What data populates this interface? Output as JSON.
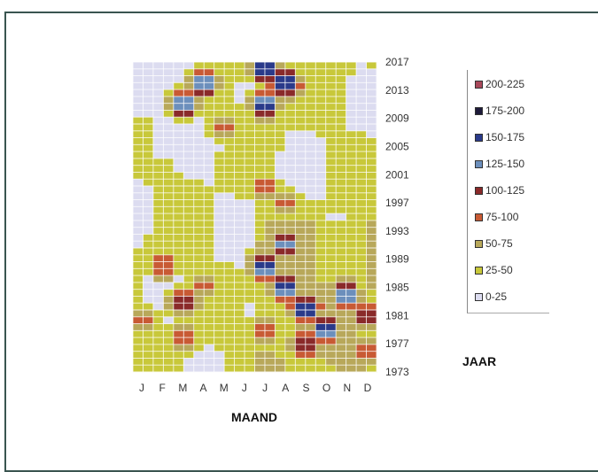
{
  "chart_data": {
    "type": "heatmap",
    "xlabel": "MAAND",
    "ylabel": "JAAR",
    "x_ticks": [
      "J",
      "F",
      "M",
      "A",
      "M",
      "J",
      "J",
      "A",
      "S",
      "O",
      "N",
      "D"
    ],
    "y_ticks": [
      "2017",
      "2013",
      "2009",
      "2005",
      "2001",
      "1997",
      "1993",
      "1989",
      "1985",
      "1981",
      "1977",
      "1973"
    ],
    "yrange": [
      1973,
      2017
    ],
    "grid": true,
    "legend_position": "right",
    "legend": [
      {
        "label": "200-225",
        "color": "#a8485a"
      },
      {
        "label": "175-200",
        "color": "#1e1a3a"
      },
      {
        "label": "150-175",
        "color": "#2a3a8a"
      },
      {
        "label": "125-150",
        "color": "#6c8fbc"
      },
      {
        "label": "100-125",
        "color": "#8a2a2a"
      },
      {
        "label": "75-100",
        "color": "#c85a34"
      },
      {
        "label": "50-75",
        "color": "#b8a85a"
      },
      {
        "label": "25-50",
        "color": "#c8c83a"
      },
      {
        "label": "0-25",
        "color": "#dcdcf0"
      }
    ],
    "hotspots": [
      {
        "month": 2,
        "year": 1988,
        "value": 110
      },
      {
        "month": 3,
        "year": 1983,
        "value": 135
      },
      {
        "month": 3,
        "year": 1978,
        "value": 110
      },
      {
        "month": 1,
        "year": 1980,
        "value": 90
      },
      {
        "month": 4,
        "year": 1985,
        "value": 85
      },
      {
        "month": 7,
        "year": 1988,
        "value": 170
      },
      {
        "month": 8,
        "year": 1985,
        "value": 180
      },
      {
        "month": 9,
        "year": 1982,
        "value": 190
      },
      {
        "month": 10,
        "year": 1979,
        "value": 170
      },
      {
        "month": 11,
        "year": 1984,
        "value": 160
      },
      {
        "month": 8,
        "year": 1991,
        "value": 150
      },
      {
        "month": 9,
        "year": 1977,
        "value": 140
      },
      {
        "month": 12,
        "year": 1981,
        "value": 140
      },
      {
        "month": 7,
        "year": 1979,
        "value": 110
      },
      {
        "month": 12,
        "year": 1976,
        "value": 90
      },
      {
        "month": 7,
        "year": 2016,
        "value": 180
      },
      {
        "month": 8,
        "year": 2014,
        "value": 190
      },
      {
        "month": 4,
        "year": 2014,
        "value": 170
      },
      {
        "month": 3,
        "year": 2011,
        "value": 160
      },
      {
        "month": 7,
        "year": 2011,
        "value": 170
      },
      {
        "month": 5,
        "year": 2008,
        "value": 90
      },
      {
        "month": 7,
        "year": 1999,
        "value": 100
      },
      {
        "month": 8,
        "year": 1997,
        "value": 90
      }
    ]
  }
}
